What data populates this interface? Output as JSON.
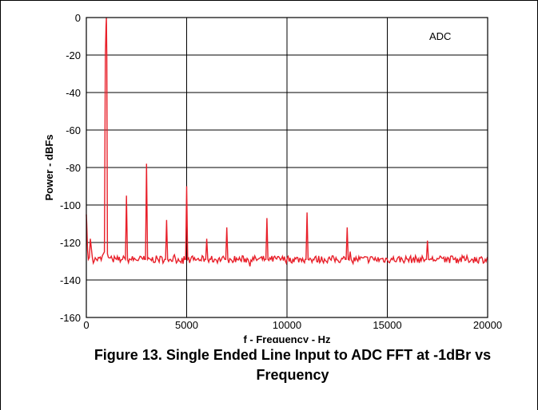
{
  "caption": {
    "line1": "Figure 13. Single Ended Line Input to ADC FFT at -1dBr vs",
    "line2": "Frequency"
  },
  "chart_data": {
    "type": "line",
    "title": "",
    "xlabel": "f - Frequency - Hz",
    "ylabel": "Power - dBFs",
    "annotation": "ADC",
    "xlim": [
      0,
      20000
    ],
    "ylim": [
      -160,
      0
    ],
    "x_ticks": [
      0,
      5000,
      10000,
      15000,
      20000
    ],
    "y_ticks": [
      0,
      -20,
      -40,
      -60,
      -80,
      -100,
      -120,
      -140,
      -160
    ],
    "grid": true,
    "line_color": "#e8202a",
    "noise_floor": -129,
    "series": [
      {
        "x": [
          0,
          20,
          60,
          100,
          150,
          200,
          300,
          500,
          800,
          900,
          950,
          980,
          1000,
          1020,
          1050,
          1100,
          1300,
          1500,
          1800,
          1950,
          2000,
          2050,
          2200,
          2900,
          2950,
          3000,
          3050,
          3200,
          3900,
          3950,
          4000,
          4050,
          4200,
          4900,
          4950,
          5000,
          5050,
          5200,
          5900,
          5950,
          6000,
          6050,
          6200,
          6900,
          6950,
          7000,
          7050,
          7200,
          8900,
          8950,
          9000,
          9050,
          9200,
          10900,
          10950,
          11000,
          11050,
          11200,
          12900,
          12950,
          13000,
          13050,
          13200,
          16900,
          16950,
          17000,
          17050,
          17200,
          20000
        ],
        "y": [
          -105,
          -110,
          -124,
          -129,
          -128,
          -118,
          -128,
          -129,
          -127,
          -125,
          -20,
          -5,
          0,
          -20,
          -126,
          -128,
          -129,
          -129,
          -129,
          -129,
          -95,
          -129,
          -129,
          -129,
          -129,
          -78,
          -129,
          -129,
          -129,
          -129,
          -108,
          -129,
          -129,
          -129,
          -129,
          -90,
          -129,
          -129,
          -129,
          -129,
          -118,
          -129,
          -129,
          -129,
          -129,
          -112,
          -129,
          -129,
          -129,
          -129,
          -107,
          -129,
          -129,
          -129,
          -129,
          -104,
          -129,
          -129,
          -129,
          -129,
          -112,
          -129,
          -129,
          -129,
          -129,
          -119,
          -129,
          -129,
          -129
        ]
      }
    ]
  }
}
